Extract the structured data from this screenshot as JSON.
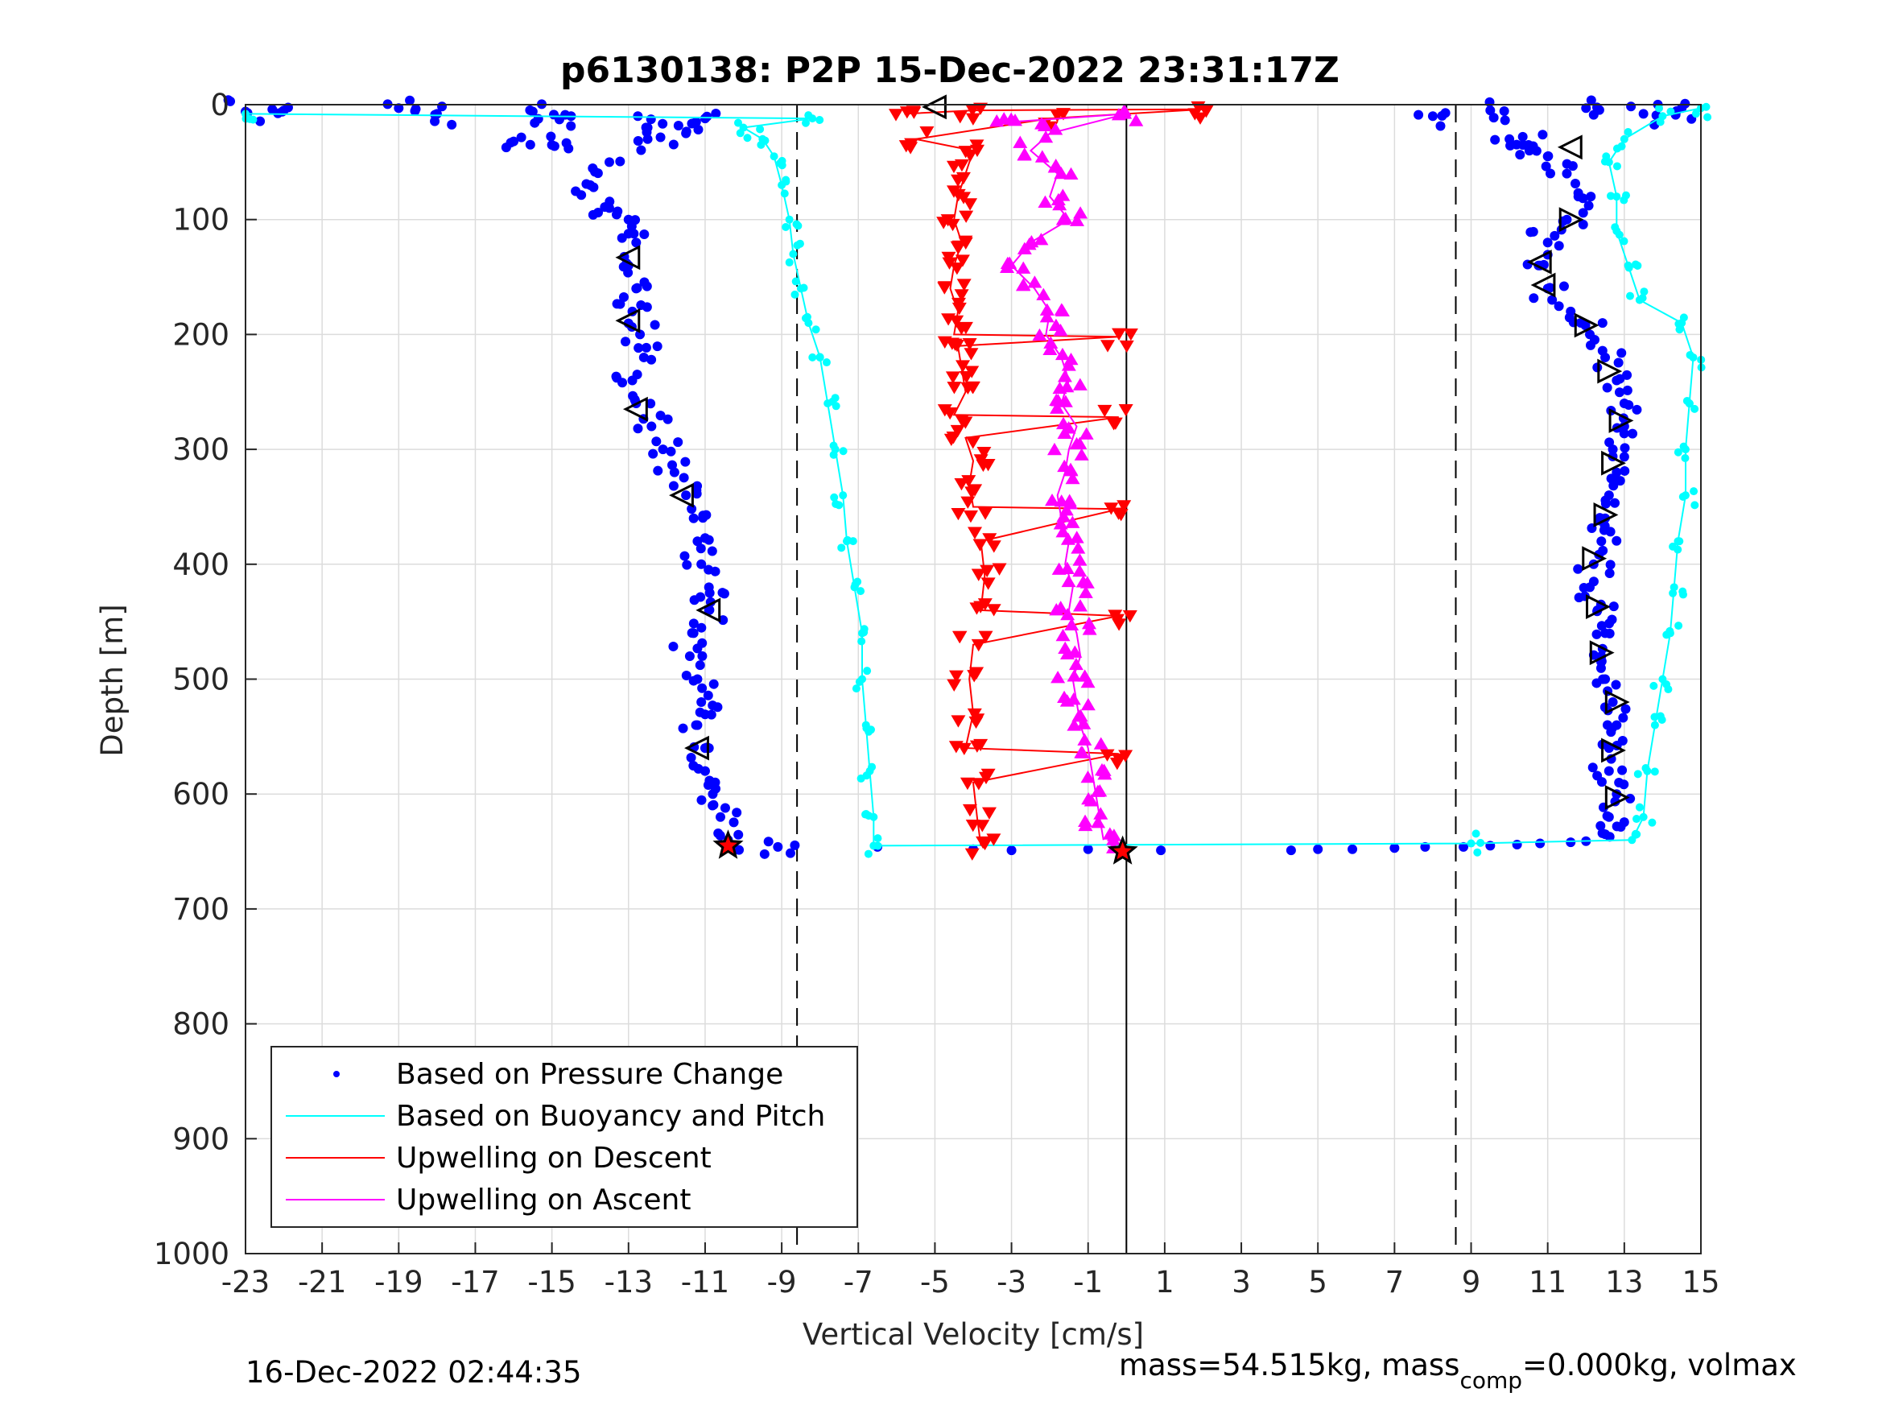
{
  "chart_data": {
    "type": "scatter",
    "title": "p6130138: P2P 15-Dec-2022 23:31:17Z",
    "xlabel": "Vertical Velocity [cm/s]",
    "ylabel": "Depth [m]",
    "xlim": [
      -23,
      15
    ],
    "ylim": [
      0,
      1000
    ],
    "y_reversed": true,
    "grid": true,
    "x_ticks": [
      -23,
      -21,
      -19,
      -17,
      -15,
      -13,
      -11,
      -9,
      -7,
      -5,
      -3,
      -1,
      1,
      3,
      5,
      7,
      9,
      11,
      13,
      15
    ],
    "x_tick_labels": [
      "-23",
      "-21",
      "-19",
      "-17",
      "-15",
      "-13",
      "-11",
      "-9",
      "-7",
      "-5",
      "-3",
      "-1",
      "1",
      "3",
      "5",
      "7",
      "9",
      "11",
      "13",
      "15"
    ],
    "y_ticks": [
      0,
      100,
      200,
      300,
      400,
      500,
      600,
      700,
      800,
      900,
      1000
    ],
    "y_tick_labels": [
      "0",
      "100",
      "200",
      "300",
      "400",
      "500",
      "600",
      "700",
      "800",
      "900",
      "1000"
    ],
    "reference_lines": {
      "dashed_x": [
        -8.6,
        8.6
      ],
      "solid_x": [
        0
      ]
    },
    "legend": {
      "position": "bottom-left",
      "entries": [
        {
          "label": "Based on Pressure Change",
          "color": "#0000ff",
          "marker": "dot"
        },
        {
          "label": "Based on Buoyancy and Pitch",
          "color": "#00ffff",
          "marker": "line"
        },
        {
          "label": "Upwelling on Descent",
          "color": "#ff0000",
          "marker": "line"
        },
        {
          "label": "Upwelling on Ascent",
          "color": "#ff00ff",
          "marker": "line"
        }
      ]
    },
    "series": [
      {
        "key": "pressure_descent",
        "color": "#0000ff",
        "marker": "dot",
        "points": [
          [
            -23,
            6
          ],
          [
            -22,
            5
          ],
          [
            -19,
            3
          ],
          [
            -18,
            8
          ],
          [
            -15.5,
            6
          ],
          [
            -14.5,
            10
          ],
          [
            -16,
            32
          ],
          [
            -15,
            35
          ],
          [
            -12.5,
            20
          ],
          [
            -11.5,
            25
          ],
          [
            -11,
            12
          ],
          [
            -12.5,
            30
          ],
          [
            -13.5,
            50
          ],
          [
            -14,
            70
          ],
          [
            -13.5,
            90
          ],
          [
            -13,
            100
          ],
          [
            -12.8,
            120
          ],
          [
            -13,
            140
          ],
          [
            -12.8,
            160
          ],
          [
            -12.9,
            180
          ],
          [
            -12.7,
            200
          ],
          [
            -12.6,
            220
          ],
          [
            -12.9,
            240
          ],
          [
            -12.8,
            260
          ],
          [
            -12.4,
            280
          ],
          [
            -12.1,
            300
          ],
          [
            -11.8,
            320
          ],
          [
            -11.5,
            340
          ],
          [
            -11.3,
            360
          ],
          [
            -11.2,
            380
          ],
          [
            -11.1,
            400
          ],
          [
            -10.9,
            420
          ],
          [
            -10.9,
            440
          ],
          [
            -11.3,
            460
          ],
          [
            -11.4,
            480
          ],
          [
            -11.2,
            500
          ],
          [
            -11.1,
            520
          ],
          [
            -11.2,
            540
          ],
          [
            -11,
            560
          ],
          [
            -11,
            580
          ],
          [
            -10.8,
            600
          ],
          [
            -10.6,
            620
          ],
          [
            -10.4,
            640
          ],
          [
            -9.1,
            646
          ]
        ]
      },
      {
        "key": "pressure_bottom",
        "color": "#0000ff",
        "marker": "dot",
        "points": [
          [
            -6.5,
            646
          ],
          [
            -4,
            648
          ],
          [
            -3,
            649
          ],
          [
            -1,
            648
          ],
          [
            0.9,
            649
          ],
          [
            4.3,
            649
          ],
          [
            5,
            648
          ],
          [
            5.9,
            648
          ],
          [
            7,
            647
          ],
          [
            7.8,
            646
          ],
          [
            8.8,
            646
          ],
          [
            9.5,
            645
          ],
          [
            10.2,
            644
          ],
          [
            10.8,
            643
          ],
          [
            11.6,
            642
          ],
          [
            12,
            641
          ]
        ]
      },
      {
        "key": "pressure_ascent",
        "color": "#0000ff",
        "marker": "dot",
        "points": [
          [
            8,
            10
          ],
          [
            9.5,
            5
          ],
          [
            10,
            30
          ],
          [
            10.5,
            35
          ],
          [
            11,
            45
          ],
          [
            11.5,
            60
          ],
          [
            11.8,
            80
          ],
          [
            11.5,
            100
          ],
          [
            11,
            120
          ],
          [
            10.8,
            140
          ],
          [
            11,
            160
          ],
          [
            11.6,
            180
          ],
          [
            12.1,
            200
          ],
          [
            12.5,
            220
          ],
          [
            12.8,
            240
          ],
          [
            13,
            260
          ],
          [
            13,
            280
          ],
          [
            12.7,
            300
          ],
          [
            12.8,
            320
          ],
          [
            12.6,
            340
          ],
          [
            12.5,
            360
          ],
          [
            12.4,
            380
          ],
          [
            12.2,
            400
          ],
          [
            12.1,
            420
          ],
          [
            12.3,
            440
          ],
          [
            12.5,
            460
          ],
          [
            12.4,
            480
          ],
          [
            12.5,
            500
          ],
          [
            12.7,
            520
          ],
          [
            12.8,
            540
          ],
          [
            12.6,
            560
          ],
          [
            12.6,
            580
          ],
          [
            12.8,
            600
          ],
          [
            12.6,
            620
          ],
          [
            12.5,
            635
          ],
          [
            13.5,
            8
          ],
          [
            14.5,
            3
          ],
          [
            12,
            3
          ]
        ]
      },
      {
        "key": "buoyancy_pitch",
        "color": "#00ffff",
        "marker": "line",
        "points": [
          [
            -23,
            8
          ],
          [
            -8.2,
            12
          ],
          [
            -10,
            20
          ],
          [
            -9.5,
            30
          ],
          [
            -9.2,
            45
          ],
          [
            -9,
            70
          ],
          [
            -8.8,
            100
          ],
          [
            -8.7,
            130
          ],
          [
            -8.5,
            160
          ],
          [
            -8.3,
            190
          ],
          [
            -8,
            220
          ],
          [
            -7.8,
            260
          ],
          [
            -7.6,
            300
          ],
          [
            -7.4,
            340
          ],
          [
            -7.3,
            380
          ],
          [
            -7.1,
            420
          ],
          [
            -6.9,
            460
          ],
          [
            -6.9,
            500
          ],
          [
            -6.8,
            540
          ],
          [
            -6.7,
            580
          ],
          [
            -6.6,
            620
          ],
          [
            -6.6,
            645
          ],
          [
            9,
            643
          ],
          [
            13.2,
            640
          ],
          [
            13.5,
            620
          ],
          [
            13.6,
            580
          ],
          [
            13.8,
            540
          ],
          [
            14,
            500
          ],
          [
            14.2,
            460
          ],
          [
            14.3,
            420
          ],
          [
            14.4,
            380
          ],
          [
            14.6,
            340
          ],
          [
            14.6,
            300
          ],
          [
            14.7,
            260
          ],
          [
            14.8,
            220
          ],
          [
            14.5,
            190
          ],
          [
            13.4,
            170
          ],
          [
            13.1,
            140
          ],
          [
            12.8,
            110
          ],
          [
            12.8,
            80
          ],
          [
            12.6,
            50
          ],
          [
            13,
            30
          ],
          [
            14,
            10
          ],
          [
            15,
            3
          ]
        ]
      },
      {
        "key": "upwelling_descent",
        "color": "#ff0000",
        "marker": "line",
        "points": [
          [
            -5.8,
            8
          ],
          [
            -4,
            5
          ],
          [
            2,
            4
          ],
          [
            -2,
            12
          ],
          [
            -5.5,
            30
          ],
          [
            -4,
            40
          ],
          [
            -4.2,
            60
          ],
          [
            -4.4,
            80
          ],
          [
            -4.5,
            100
          ],
          [
            -4.3,
            120
          ],
          [
            -4.5,
            140
          ],
          [
            -4.6,
            160
          ],
          [
            -4.4,
            180
          ],
          [
            -4.5,
            200
          ],
          [
            -0.2,
            202
          ],
          [
            -4.4,
            210
          ],
          [
            -4.3,
            230
          ],
          [
            -4.2,
            250
          ],
          [
            -4.5,
            270
          ],
          [
            -0.2,
            272
          ],
          [
            -4.2,
            290
          ],
          [
            -4,
            310
          ],
          [
            -4.1,
            330
          ],
          [
            -4,
            350
          ],
          [
            -0.2,
            352
          ],
          [
            -3.8,
            380
          ],
          [
            -3.7,
            410
          ],
          [
            -3.8,
            440
          ],
          [
            -0.2,
            445
          ],
          [
            -4,
            470
          ],
          [
            -4.1,
            500
          ],
          [
            -4,
            530
          ],
          [
            -4.2,
            560
          ],
          [
            -0.2,
            565
          ],
          [
            -4,
            590
          ],
          [
            -3.9,
            620
          ],
          [
            -3.8,
            645
          ]
        ]
      },
      {
        "key": "upwelling_ascent",
        "color": "#ff00ff",
        "marker": "line",
        "points": [
          [
            -3,
            15
          ],
          [
            0,
            8
          ],
          [
            -2,
            25
          ],
          [
            -2.5,
            40
          ],
          [
            -1.8,
            60
          ],
          [
            -2,
            80
          ],
          [
            -1.5,
            100
          ],
          [
            -2.5,
            120
          ],
          [
            -3,
            140
          ],
          [
            -2.4,
            160
          ],
          [
            -2,
            180
          ],
          [
            -2.1,
            200
          ],
          [
            -1.7,
            220
          ],
          [
            -1.5,
            240
          ],
          [
            -1.7,
            260
          ],
          [
            -1.3,
            280
          ],
          [
            -1.5,
            300
          ],
          [
            -1.6,
            320
          ],
          [
            -1.8,
            340
          ],
          [
            -1.7,
            360
          ],
          [
            -1.5,
            380
          ],
          [
            -1.6,
            400
          ],
          [
            -1.4,
            420
          ],
          [
            -1.5,
            440
          ],
          [
            -1.3,
            460
          ],
          [
            -1.2,
            480
          ],
          [
            -1.4,
            500
          ],
          [
            -1.3,
            520
          ],
          [
            -1.2,
            540
          ],
          [
            -1.0,
            560
          ],
          [
            -0.9,
            580
          ],
          [
            -0.8,
            600
          ],
          [
            -0.7,
            620
          ],
          [
            -0.6,
            640
          ]
        ]
      }
    ],
    "markers": {
      "descent_triangles": [
        [
          -5,
          2
        ],
        [
          -13,
          133
        ],
        [
          -13,
          188
        ],
        [
          -12.8,
          265
        ],
        [
          -11.6,
          340
        ],
        [
          -10.9,
          440
        ],
        [
          -11.2,
          560
        ],
        [
          11.6,
          37
        ],
        [
          10.8,
          137
        ],
        [
          10.9,
          157
        ]
      ],
      "ascent_triangles": [
        [
          11.6,
          100
        ],
        [
          12,
          192
        ],
        [
          12.6,
          232
        ],
        [
          12.9,
          275
        ],
        [
          12.7,
          312
        ],
        [
          12.5,
          357
        ],
        [
          12.2,
          395
        ],
        [
          12.3,
          437
        ],
        [
          12.4,
          477
        ],
        [
          12.8,
          520
        ],
        [
          12.7,
          562
        ],
        [
          12.8,
          603
        ]
      ],
      "red_stars": [
        [
          -10.4,
          645
        ],
        [
          -0.1,
          650
        ]
      ]
    }
  },
  "footer": {
    "timestamp": "16-Dec-2022 02:44:35",
    "mass_text_a": "mass=54.515kg, mass",
    "mass_sub": "comp",
    "mass_text_b": "=0.000kg, volmax"
  }
}
